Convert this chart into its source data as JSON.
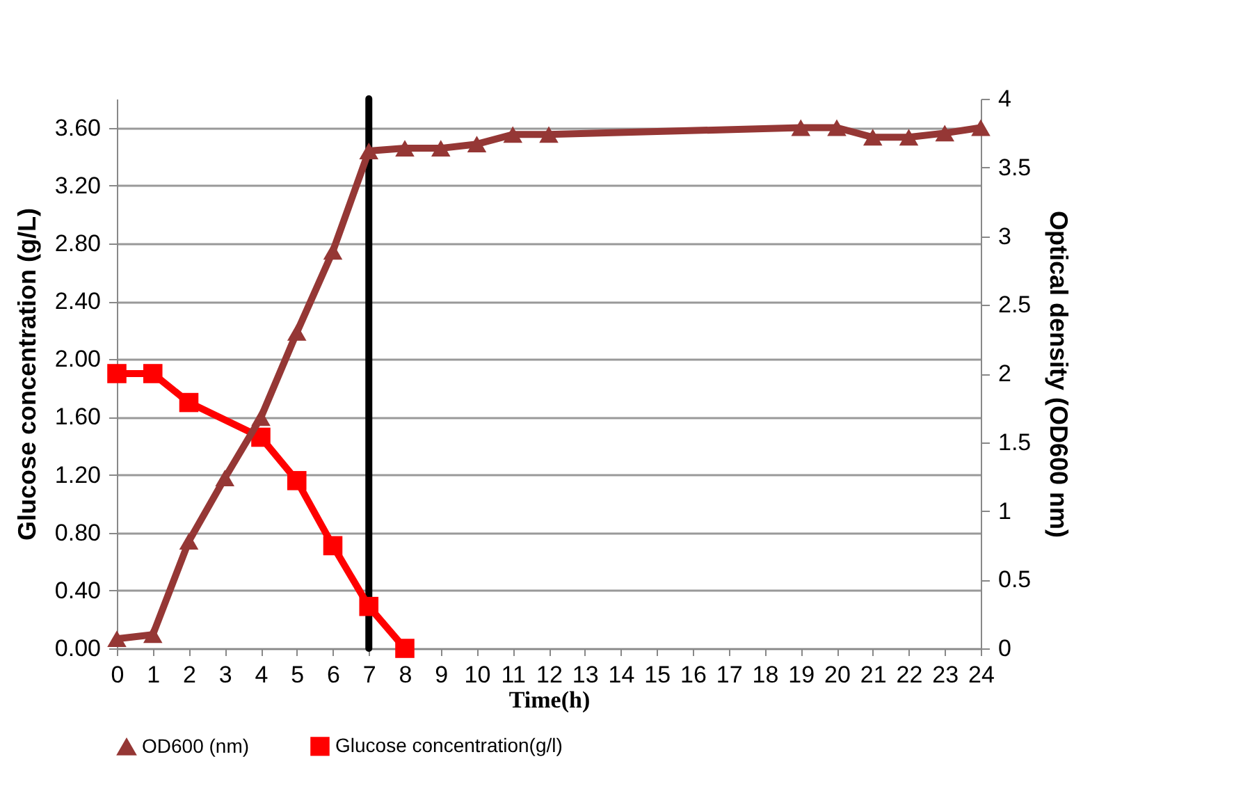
{
  "chart_data": {
    "type": "line",
    "xlabel": "Time(h)",
    "ylabel": "Glucose concentration (g/L)",
    "y2label": "Optical density (OD600 nm)",
    "xlim": [
      0,
      24
    ],
    "xticks": [
      0,
      1,
      2,
      3,
      4,
      5,
      6,
      7,
      8,
      9,
      10,
      11,
      12,
      13,
      14,
      15,
      16,
      17,
      18,
      19,
      20,
      21,
      22,
      23,
      24
    ],
    "series": [
      {
        "name": "OD600 (nm)",
        "color": "#953735",
        "axis": "y2",
        "marker": "triangle",
        "x": [
          0,
          1,
          2,
          3,
          4,
          5,
          6,
          7,
          8,
          9,
          10,
          11,
          12,
          19,
          20,
          21,
          22,
          23,
          24
        ],
        "values": [
          0.07,
          0.1,
          0.78,
          1.24,
          1.68,
          2.3,
          2.89,
          3.62,
          3.64,
          3.64,
          3.67,
          3.74,
          3.74,
          3.79,
          3.79,
          3.72,
          3.72,
          3.75,
          3.79
        ]
      },
      {
        "name": "Glucose concentration(g/l)",
        "color": "#ff0000",
        "axis": "y",
        "marker": "square",
        "x": [
          0,
          1,
          2,
          4,
          5,
          6,
          7,
          8
        ],
        "values": [
          1.9,
          1.9,
          1.7,
          1.46,
          1.16,
          0.71,
          0.29,
          0
        ]
      }
    ],
    "ylim": [
      0,
      3.8
    ],
    "yticks": [
      {
        "value": 0,
        "label": "0.00"
      },
      {
        "value": 0.4,
        "label": "0.40"
      },
      {
        "value": 0.8,
        "label": "0.80"
      },
      {
        "value": 1.2,
        "label": "1.20"
      },
      {
        "value": 1.6,
        "label": "1.60"
      },
      {
        "value": 2,
        "label": "2.00"
      },
      {
        "value": 2.4,
        "label": "2.40"
      },
      {
        "value": 2.8,
        "label": "2.80"
      },
      {
        "value": 3.2,
        "label": "3.20"
      },
      {
        "value": 3.6,
        "label": "3.60"
      }
    ],
    "y2lim": [
      0,
      4
    ],
    "y2ticks": [
      0,
      0.5,
      1,
      1.5,
      2,
      2.5,
      3,
      3.5,
      4
    ],
    "ref_lines": [
      {
        "axis": "x",
        "value": 7,
        "color": "#000000"
      }
    ],
    "grid": "y",
    "legend": "bottom"
  }
}
